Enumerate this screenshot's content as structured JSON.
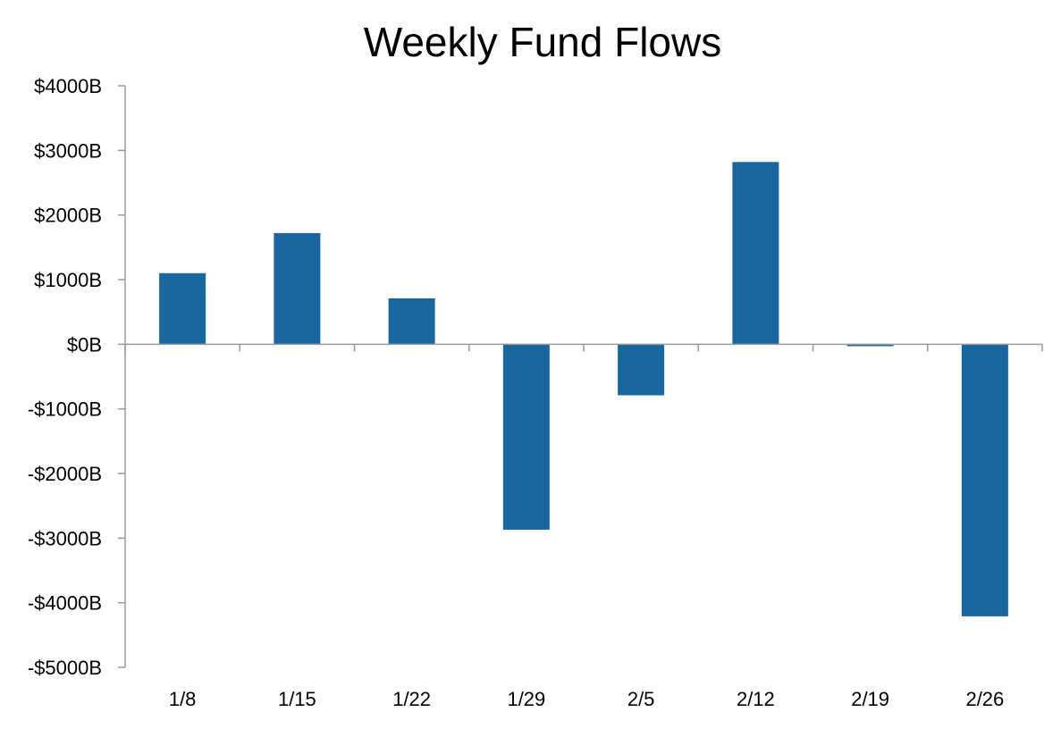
{
  "chart_data": {
    "type": "bar",
    "title": "Weekly Fund Flows",
    "xlabel": "",
    "ylabel": "",
    "categories": [
      "1/8",
      "1/15",
      "1/22",
      "1/29",
      "2/5",
      "2/12",
      "2/19",
      "2/26"
    ],
    "values": [
      1100,
      1720,
      710,
      -2870,
      -790,
      2820,
      -30,
      -4210
    ],
    "ylim": [
      -5000,
      4000
    ],
    "y_ticks": [
      4000,
      3000,
      2000,
      1000,
      0,
      -1000,
      -2000,
      -3000,
      -4000,
      -5000
    ],
    "y_tick_labels": [
      "$4000B",
      "$3000B",
      "$2000B",
      "$1000B",
      "$0B",
      "-$1000B",
      "-$2000B",
      "-$3000B",
      "-$4000B",
      "-$5000B"
    ],
    "grid": false,
    "legend": "none",
    "colors": {
      "bar": "#1a67a0",
      "axis": "#9a9a9a",
      "text": "#000000"
    }
  }
}
